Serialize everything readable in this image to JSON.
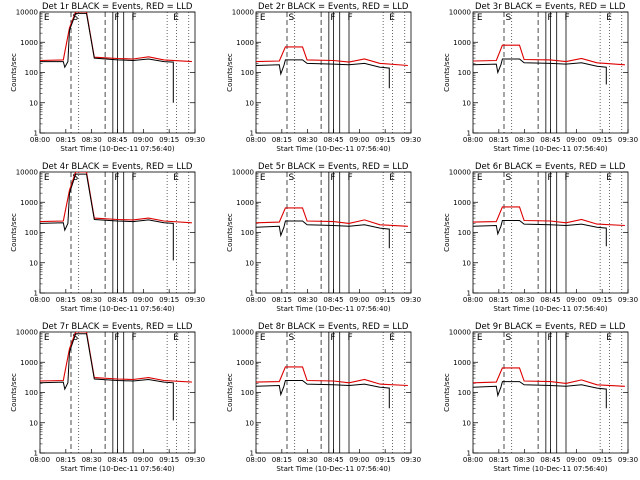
{
  "chart_data": {
    "type": "line",
    "layout": "3x3 grid",
    "y_scale": "log",
    "ylim": [
      1,
      10000
    ],
    "yticks": [
      "1",
      "10",
      "100",
      "1000",
      "10000"
    ],
    "ylabel": "Counts/sec",
    "xticks": [
      "08:00",
      "08:15",
      "08:30",
      "08:45",
      "09:00",
      "09:15",
      "09:30"
    ],
    "xlabel": "Start Time (10-Dec-11 07:56:40)",
    "title_suffix": "BLACK = Events, RED = LLD",
    "series_legend": {
      "black": "Events",
      "red": "LLD"
    },
    "colors": {
      "events": "#000000",
      "lld": "#dd0000"
    },
    "panels": [
      {
        "title": "Det 1r",
        "flags": [
          "E",
          "S",
          "F",
          "F",
          "E"
        ],
        "events": [
          [
            0,
            230
          ],
          [
            15,
            230
          ],
          [
            16,
            150
          ],
          [
            18,
            230
          ],
          [
            19,
            2500
          ],
          [
            23,
            9000
          ],
          [
            30,
            9000
          ],
          [
            35,
            300
          ],
          [
            50,
            260
          ],
          [
            60,
            250
          ],
          [
            70,
            280
          ],
          [
            80,
            230
          ],
          [
            86,
            220
          ],
          [
            86,
            10
          ]
        ],
        "lld": [
          [
            0,
            250
          ],
          [
            15,
            260
          ],
          [
            19,
            3000
          ],
          [
            23,
            10000
          ],
          [
            30,
            10000
          ],
          [
            35,
            320
          ],
          [
            50,
            290
          ],
          [
            60,
            280
          ],
          [
            70,
            330
          ],
          [
            80,
            260
          ],
          [
            98,
            230
          ]
        ]
      },
      {
        "title": "Det 2r",
        "flags": [
          "E",
          "S",
          "F",
          "F",
          "E"
        ],
        "events": [
          [
            0,
            170
          ],
          [
            15,
            180
          ],
          [
            16,
            90
          ],
          [
            18,
            170
          ],
          [
            19,
            260
          ],
          [
            30,
            260
          ],
          [
            33,
            200
          ],
          [
            50,
            190
          ],
          [
            60,
            180
          ],
          [
            70,
            200
          ],
          [
            80,
            150
          ],
          [
            86,
            140
          ],
          [
            86,
            30
          ]
        ],
        "lld": [
          [
            0,
            230
          ],
          [
            15,
            240
          ],
          [
            19,
            700
          ],
          [
            30,
            700
          ],
          [
            33,
            260
          ],
          [
            50,
            250
          ],
          [
            60,
            220
          ],
          [
            70,
            280
          ],
          [
            80,
            200
          ],
          [
            98,
            170
          ]
        ]
      },
      {
        "title": "Det 3r",
        "flags": [
          "E",
          "S",
          "F",
          "F",
          "E"
        ],
        "events": [
          [
            0,
            180
          ],
          [
            15,
            190
          ],
          [
            16,
            100
          ],
          [
            18,
            180
          ],
          [
            19,
            280
          ],
          [
            30,
            280
          ],
          [
            33,
            210
          ],
          [
            50,
            200
          ],
          [
            60,
            190
          ],
          [
            70,
            210
          ],
          [
            80,
            160
          ],
          [
            86,
            150
          ],
          [
            86,
            40
          ]
        ],
        "lld": [
          [
            0,
            240
          ],
          [
            15,
            250
          ],
          [
            19,
            800
          ],
          [
            30,
            800
          ],
          [
            33,
            270
          ],
          [
            50,
            260
          ],
          [
            60,
            230
          ],
          [
            70,
            290
          ],
          [
            80,
            210
          ],
          [
            98,
            180
          ]
        ]
      },
      {
        "title": "Det 4r",
        "flags": [
          "E",
          "S",
          "F",
          "F",
          "E"
        ],
        "events": [
          [
            0,
            200
          ],
          [
            15,
            210
          ],
          [
            16,
            120
          ],
          [
            18,
            200
          ],
          [
            19,
            2000
          ],
          [
            23,
            8500
          ],
          [
            30,
            8500
          ],
          [
            35,
            270
          ],
          [
            50,
            240
          ],
          [
            60,
            230
          ],
          [
            70,
            260
          ],
          [
            80,
            210
          ],
          [
            86,
            200
          ],
          [
            86,
            12
          ]
        ],
        "lld": [
          [
            0,
            230
          ],
          [
            15,
            240
          ],
          [
            19,
            2500
          ],
          [
            23,
            10000
          ],
          [
            30,
            10000
          ],
          [
            35,
            300
          ],
          [
            50,
            270
          ],
          [
            60,
            260
          ],
          [
            70,
            300
          ],
          [
            80,
            240
          ],
          [
            98,
            210
          ]
        ]
      },
      {
        "title": "Det 5r",
        "flags": [
          "E",
          "S",
          "F",
          "F",
          "E"
        ],
        "events": [
          [
            0,
            150
          ],
          [
            15,
            160
          ],
          [
            16,
            80
          ],
          [
            18,
            150
          ],
          [
            19,
            240
          ],
          [
            30,
            240
          ],
          [
            33,
            180
          ],
          [
            50,
            170
          ],
          [
            60,
            160
          ],
          [
            70,
            180
          ],
          [
            80,
            140
          ],
          [
            86,
            130
          ],
          [
            86,
            30
          ]
        ],
        "lld": [
          [
            0,
            210
          ],
          [
            15,
            220
          ],
          [
            19,
            650
          ],
          [
            30,
            650
          ],
          [
            33,
            240
          ],
          [
            50,
            230
          ],
          [
            60,
            200
          ],
          [
            70,
            260
          ],
          [
            80,
            180
          ],
          [
            98,
            160
          ]
        ]
      },
      {
        "title": "Det 6r",
        "flags": [
          "E",
          "S",
          "F",
          "F",
          "E"
        ],
        "events": [
          [
            0,
            160
          ],
          [
            15,
            170
          ],
          [
            16,
            90
          ],
          [
            18,
            160
          ],
          [
            19,
            250
          ],
          [
            30,
            250
          ],
          [
            33,
            190
          ],
          [
            50,
            180
          ],
          [
            60,
            170
          ],
          [
            70,
            190
          ],
          [
            80,
            150
          ],
          [
            86,
            140
          ],
          [
            86,
            35
          ]
        ],
        "lld": [
          [
            0,
            220
          ],
          [
            15,
            230
          ],
          [
            19,
            700
          ],
          [
            30,
            700
          ],
          [
            33,
            250
          ],
          [
            50,
            240
          ],
          [
            60,
            210
          ],
          [
            70,
            270
          ],
          [
            80,
            190
          ],
          [
            98,
            170
          ]
        ]
      },
      {
        "title": "Det 7r",
        "flags": [
          "E",
          "S",
          "F",
          "F",
          "E"
        ],
        "events": [
          [
            0,
            210
          ],
          [
            15,
            220
          ],
          [
            16,
            130
          ],
          [
            18,
            210
          ],
          [
            19,
            2200
          ],
          [
            23,
            8800
          ],
          [
            30,
            8800
          ],
          [
            35,
            280
          ],
          [
            50,
            250
          ],
          [
            60,
            240
          ],
          [
            70,
            270
          ],
          [
            80,
            220
          ],
          [
            86,
            210
          ],
          [
            86,
            12
          ]
        ],
        "lld": [
          [
            0,
            240
          ],
          [
            15,
            250
          ],
          [
            19,
            2800
          ],
          [
            23,
            10000
          ],
          [
            30,
            10000
          ],
          [
            35,
            310
          ],
          [
            50,
            280
          ],
          [
            60,
            270
          ],
          [
            70,
            310
          ],
          [
            80,
            250
          ],
          [
            98,
            220
          ]
        ]
      },
      {
        "title": "Det 8r",
        "flags": [
          "E",
          "S",
          "F",
          "F",
          "E"
        ],
        "events": [
          [
            0,
            160
          ],
          [
            15,
            170
          ],
          [
            16,
            85
          ],
          [
            18,
            160
          ],
          [
            19,
            250
          ],
          [
            30,
            250
          ],
          [
            33,
            190
          ],
          [
            50,
            180
          ],
          [
            60,
            170
          ],
          [
            70,
            190
          ],
          [
            80,
            150
          ],
          [
            86,
            140
          ],
          [
            86,
            30
          ]
        ],
        "lld": [
          [
            0,
            220
          ],
          [
            15,
            230
          ],
          [
            19,
            700
          ],
          [
            30,
            700
          ],
          [
            33,
            250
          ],
          [
            50,
            240
          ],
          [
            60,
            210
          ],
          [
            70,
            270
          ],
          [
            80,
            190
          ],
          [
            98,
            170
          ]
        ]
      },
      {
        "title": "Det 9r",
        "flags": [
          "E",
          "S",
          "F",
          "F",
          "E"
        ],
        "events": [
          [
            0,
            150
          ],
          [
            15,
            160
          ],
          [
            16,
            80
          ],
          [
            18,
            150
          ],
          [
            19,
            230
          ],
          [
            30,
            230
          ],
          [
            33,
            180
          ],
          [
            50,
            170
          ],
          [
            60,
            160
          ],
          [
            70,
            180
          ],
          [
            80,
            140
          ],
          [
            86,
            130
          ],
          [
            86,
            30
          ]
        ],
        "lld": [
          [
            0,
            210
          ],
          [
            15,
            220
          ],
          [
            19,
            650
          ],
          [
            30,
            650
          ],
          [
            33,
            240
          ],
          [
            50,
            230
          ],
          [
            60,
            200
          ],
          [
            70,
            260
          ],
          [
            80,
            180
          ],
          [
            98,
            160
          ]
        ]
      }
    ]
  }
}
